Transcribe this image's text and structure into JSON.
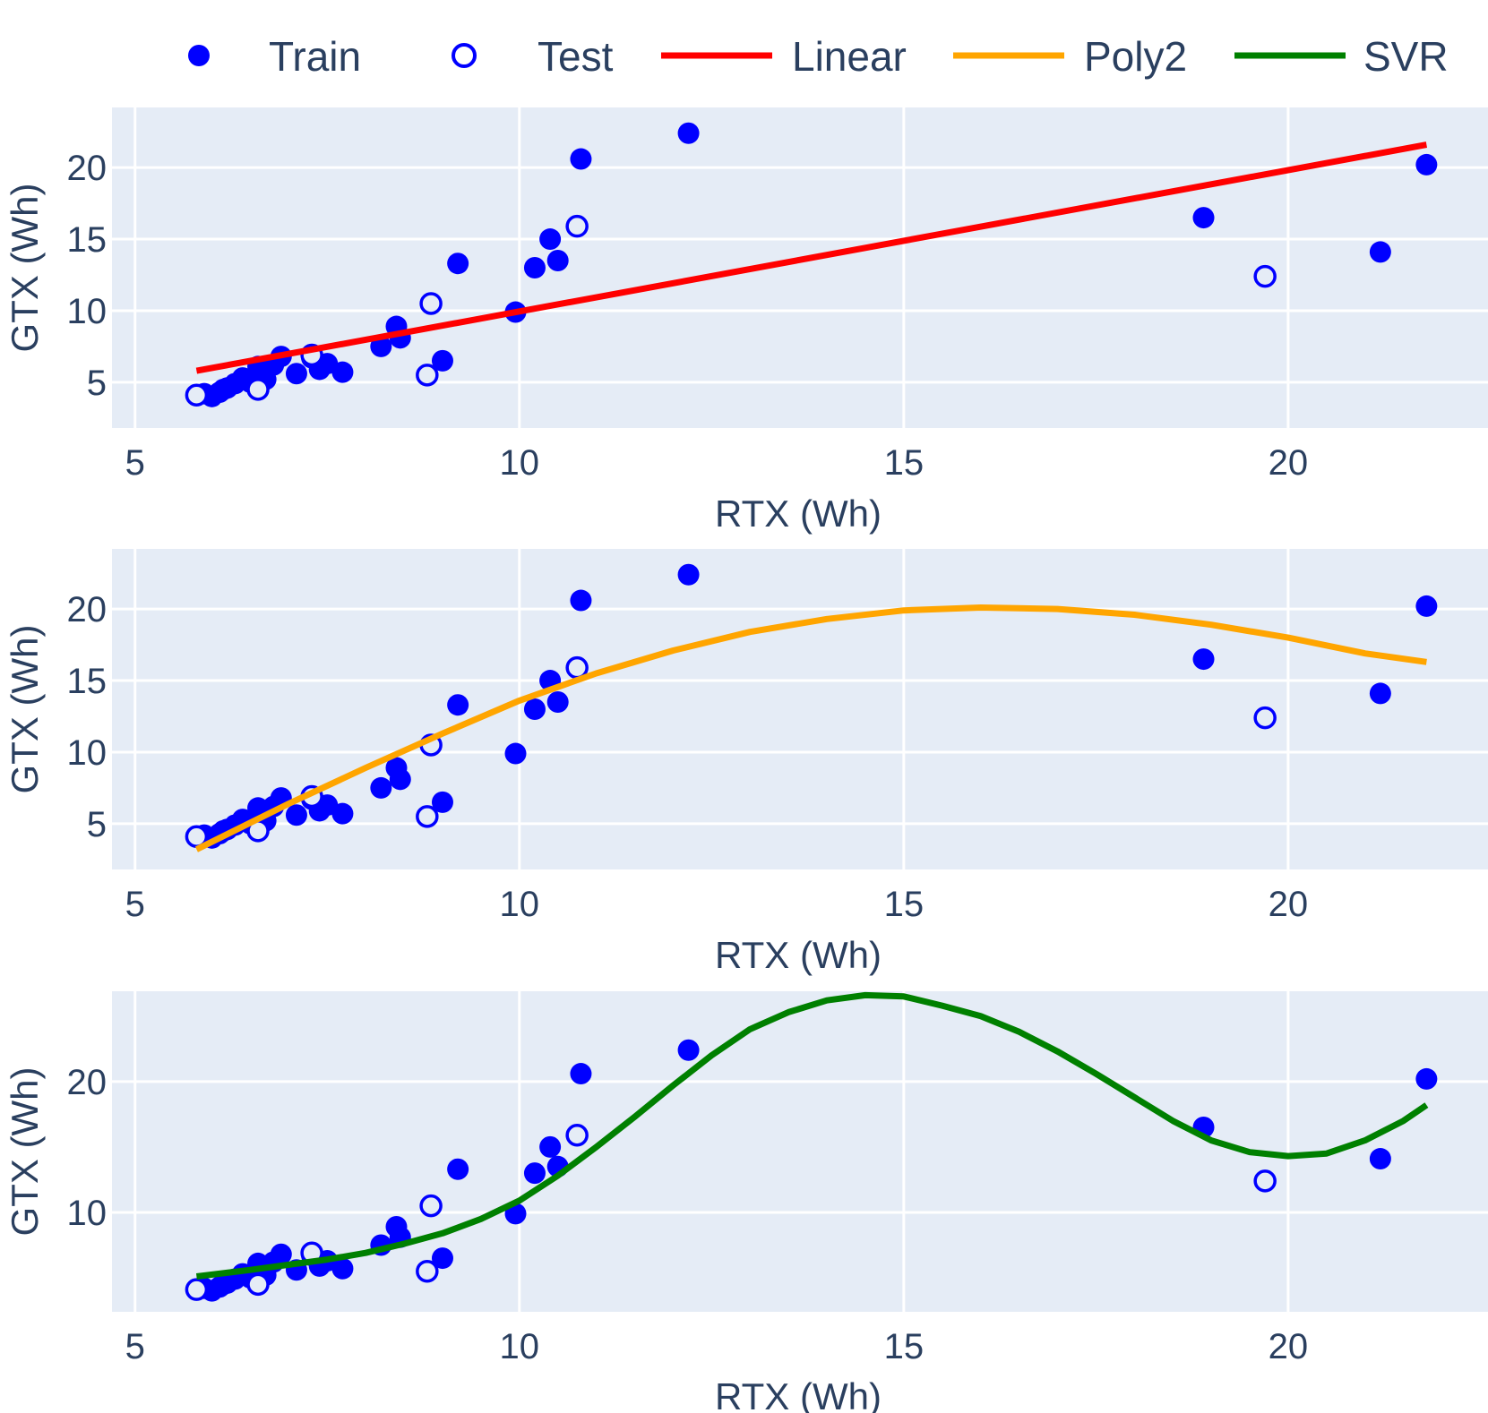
{
  "chart_data": {
    "type": "scatter",
    "colors": {
      "points": "#0000ff",
      "Linear": "#ff0000",
      "Poly2": "#ffa500",
      "SVR": "#008000",
      "plot_bg": "#e5ecf6",
      "grid": "#ffffff",
      "text": "#2a3f5f"
    },
    "legend": {
      "placement": "top",
      "items": [
        {
          "label": "Train",
          "kind": "filled-marker",
          "color": "#0000ff"
        },
        {
          "label": "Test",
          "kind": "open-marker",
          "color": "#0000ff"
        },
        {
          "label": "Linear",
          "kind": "line",
          "color": "#ff0000"
        },
        {
          "label": "Poly2",
          "kind": "line",
          "color": "#ffa500"
        },
        {
          "label": "SVR",
          "kind": "line",
          "color": "#008000"
        }
      ]
    },
    "train": {
      "name": "Train",
      "x": [
        5.9,
        6.0,
        6.1,
        6.15,
        6.2,
        6.3,
        6.4,
        6.5,
        6.6,
        6.7,
        6.8,
        6.9,
        7.1,
        7.3,
        7.4,
        7.5,
        7.7,
        8.2,
        8.4,
        8.45,
        9.0,
        9.2,
        9.95,
        10.2,
        10.4,
        10.5,
        10.8,
        12.2,
        18.9,
        21.2,
        21.8
      ],
      "y": [
        4.2,
        4.0,
        4.3,
        4.5,
        4.6,
        4.9,
        5.3,
        5.0,
        6.1,
        5.2,
        6.2,
        6.8,
        5.6,
        6.7,
        5.9,
        6.3,
        5.7,
        7.5,
        8.9,
        8.1,
        6.5,
        13.3,
        9.9,
        13.0,
        15.0,
        13.5,
        20.6,
        22.4,
        16.5,
        14.1,
        20.2
      ]
    },
    "test": {
      "name": "Test",
      "x": [
        5.8,
        6.6,
        7.3,
        8.8,
        8.85,
        10.75,
        19.7
      ],
      "y": [
        4.1,
        4.5,
        6.9,
        5.5,
        10.5,
        15.9,
        12.4
      ]
    },
    "panels": [
      {
        "fit": "Linear",
        "xlabel": "RTX (Wh)",
        "ylabel": "GTX (Wh)",
        "xlim": [
          4.7,
          22.6
        ],
        "ylim": [
          1.8,
          24.2
        ],
        "xticks": [
          5,
          10,
          15,
          20
        ],
        "yticks": [
          5,
          10,
          15,
          20
        ],
        "curve": {
          "x": [
            5.8,
            21.8
          ],
          "y": [
            5.8,
            21.6
          ]
        }
      },
      {
        "fit": "Poly2",
        "xlabel": "RTX (Wh)",
        "ylabel": "GTX (Wh)",
        "xlim": [
          4.7,
          22.6
        ],
        "ylim": [
          1.8,
          24.2
        ],
        "xticks": [
          5,
          10,
          15,
          20
        ],
        "yticks": [
          5,
          10,
          15,
          20
        ],
        "curve": {
          "x": [
            5.8,
            7.0,
            8.0,
            9.0,
            10.0,
            11.0,
            12.0,
            13.0,
            14.0,
            15.0,
            16.0,
            17.0,
            18.0,
            19.0,
            20.0,
            21.0,
            21.8
          ],
          "y": [
            3.2,
            6.4,
            8.9,
            11.3,
            13.6,
            15.5,
            17.1,
            18.4,
            19.3,
            19.9,
            20.1,
            20.0,
            19.6,
            18.9,
            18.0,
            16.9,
            16.3
          ]
        }
      },
      {
        "fit": "SVR",
        "xlabel": "RTX (Wh)",
        "ylabel": "GTX (Wh)",
        "xlim": [
          4.7,
          22.6
        ],
        "ylim": [
          2.4,
          26.9
        ],
        "xticks": [
          5,
          10,
          15,
          20
        ],
        "yticks": [
          10,
          20
        ],
        "curve": {
          "x": [
            5.8,
            6.5,
            7.0,
            7.5,
            8.0,
            8.5,
            9.0,
            9.5,
            10.0,
            10.5,
            11.0,
            11.5,
            12.0,
            12.5,
            13.0,
            13.5,
            14.0,
            14.5,
            15.0,
            15.5,
            16.0,
            16.5,
            17.0,
            17.5,
            18.0,
            18.5,
            19.0,
            19.5,
            20.0,
            20.5,
            21.0,
            21.5,
            21.8
          ],
          "y": [
            5.1,
            5.6,
            6.0,
            6.4,
            6.9,
            7.6,
            8.4,
            9.5,
            10.9,
            12.8,
            15.0,
            17.3,
            19.7,
            22.0,
            24.0,
            25.3,
            26.2,
            26.6,
            26.5,
            25.8,
            25.0,
            23.8,
            22.3,
            20.6,
            18.8,
            17.0,
            15.5,
            14.6,
            14.3,
            14.5,
            15.5,
            17.0,
            18.2
          ]
        }
      }
    ]
  }
}
